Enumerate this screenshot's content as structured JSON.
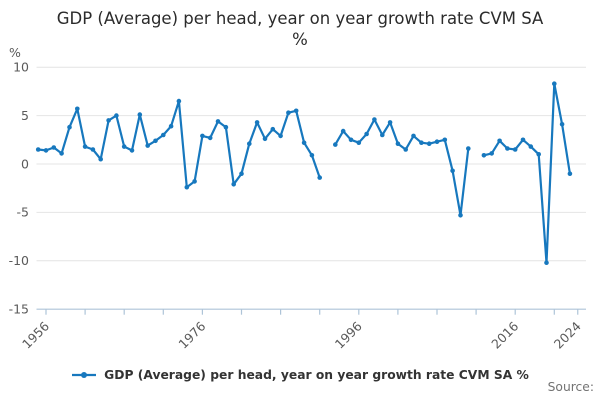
{
  "title": {
    "line1": "GDP (Average) per head, year on year growth rate CVM SA",
    "line2": "%"
  },
  "legend": {
    "label": "GDP (Average) per head, year on year growth rate CVM SA %",
    "marker_icon": "line-with-dot"
  },
  "footer": {
    "source_label": "Source:"
  },
  "colors": {
    "line": "#1778be",
    "grid": "#e4e4e4",
    "axis": "#aec4d8",
    "tick_text": "#5a5a5a",
    "title_text": "#2b2b2b",
    "legend_text": "#333333",
    "source_text": "#737373"
  },
  "chart_data": {
    "type": "line",
    "title": "GDP (Average) per head, year on year growth rate CVM SA %",
    "xlabel": "",
    "ylabel": "%",
    "ylim": [
      -15,
      10
    ],
    "xlim": [
      1955,
      2024
    ],
    "grid": "horizontal",
    "legend_position": "bottom-center",
    "marker": "dot",
    "y_ticks": [
      10,
      5,
      0,
      -5,
      -10,
      -15
    ],
    "x_ticks": [
      1956,
      1961,
      1966,
      1971,
      1976,
      1981,
      1986,
      1991,
      1996,
      2001,
      2006,
      2011,
      2016,
      2021,
      2024
    ],
    "x_tick_labels": [
      {
        "year": 1956,
        "label": "1956"
      },
      {
        "year": 1976,
        "label": "1976"
      },
      {
        "year": 1996,
        "label": "1996"
      },
      {
        "year": 2016,
        "label": "2016"
      },
      {
        "year": 2024,
        "label": "2024"
      }
    ],
    "y_unit_label": "%",
    "gaps": [
      1992,
      2011
    ],
    "series": [
      {
        "name": "GDP (Average) per head, year on year growth rate CVM SA %",
        "segment": "1955-1991",
        "points": [
          [
            1955,
            1.5
          ],
          [
            1956,
            1.4
          ],
          [
            1957,
            1.7
          ],
          [
            1958,
            1.1
          ],
          [
            1959,
            3.8
          ],
          [
            1960,
            5.7
          ],
          [
            1961,
            1.8
          ],
          [
            1962,
            1.5
          ],
          [
            1963,
            0.5
          ],
          [
            1964,
            4.5
          ],
          [
            1965,
            5.0
          ],
          [
            1966,
            1.8
          ],
          [
            1967,
            1.4
          ],
          [
            1968,
            5.1
          ],
          [
            1969,
            1.9
          ],
          [
            1970,
            2.4
          ],
          [
            1971,
            3.0
          ],
          [
            1972,
            3.9
          ],
          [
            1973,
            6.5
          ],
          [
            1974,
            -2.4
          ],
          [
            1975,
            -1.8
          ],
          [
            1976,
            2.9
          ],
          [
            1977,
            2.7
          ],
          [
            1978,
            4.4
          ],
          [
            1979,
            3.8
          ],
          [
            1980,
            -2.1
          ],
          [
            1981,
            -1.0
          ],
          [
            1982,
            2.1
          ],
          [
            1983,
            4.3
          ],
          [
            1984,
            2.6
          ],
          [
            1985,
            3.6
          ],
          [
            1986,
            2.9
          ],
          [
            1987,
            5.3
          ],
          [
            1988,
            5.5
          ],
          [
            1989,
            2.2
          ],
          [
            1990,
            0.9
          ],
          [
            1991,
            -1.4
          ]
        ]
      },
      {
        "name": "GDP (Average) per head, year on year growth rate CVM SA %",
        "segment": "1993-2010",
        "points": [
          [
            1993,
            2.0
          ],
          [
            1994,
            3.4
          ],
          [
            1995,
            2.5
          ],
          [
            1996,
            2.2
          ],
          [
            1997,
            3.1
          ],
          [
            1998,
            4.6
          ],
          [
            1999,
            3.0
          ],
          [
            2000,
            4.3
          ],
          [
            2001,
            2.1
          ],
          [
            2002,
            1.5
          ],
          [
            2003,
            2.9
          ],
          [
            2004,
            2.2
          ],
          [
            2005,
            2.1
          ],
          [
            2006,
            2.3
          ],
          [
            2007,
            2.5
          ],
          [
            2008,
            -0.7
          ],
          [
            2009,
            -5.3
          ],
          [
            2010,
            1.6
          ]
        ]
      },
      {
        "name": "GDP (Average) per head, year on year growth rate CVM SA %",
        "segment": "2012-2023",
        "points": [
          [
            2012,
            0.9
          ],
          [
            2013,
            1.1
          ],
          [
            2014,
            2.4
          ],
          [
            2015,
            1.6
          ],
          [
            2016,
            1.5
          ],
          [
            2017,
            2.5
          ],
          [
            2018,
            1.8
          ],
          [
            2019,
            1.0
          ],
          [
            2020,
            -10.2
          ],
          [
            2021,
            8.3
          ],
          [
            2022,
            4.1
          ],
          [
            2023,
            -1.0
          ]
        ]
      }
    ]
  }
}
